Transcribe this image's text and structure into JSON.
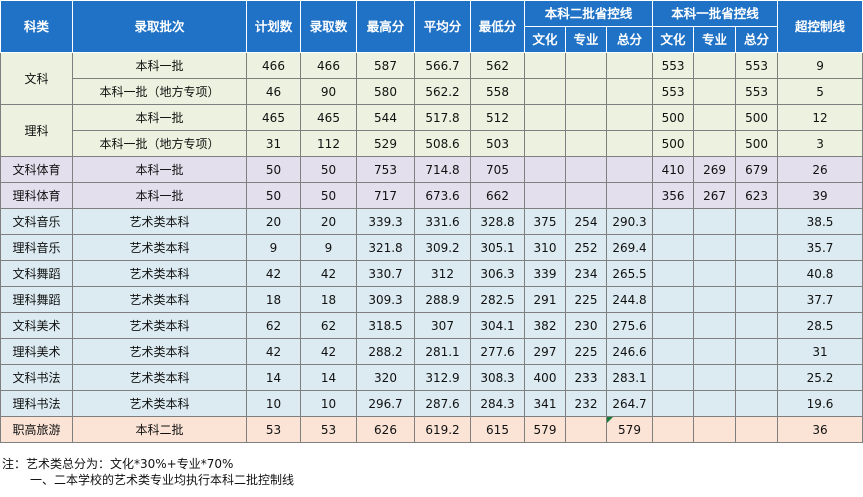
{
  "headers": {
    "kelei": "科类",
    "pici": "录取批次",
    "jihua": "计划数",
    "luqu": "录取数",
    "zuigao": "最高分",
    "pingjun": "平均分",
    "zuidi": "最低分",
    "erpi": "本科二批省控线",
    "yipi": "本科一批省控线",
    "chaokong": "超控制线",
    "wenhua": "文化",
    "zhuanye": "专业",
    "zongfen": "总分"
  },
  "groups": {
    "wenke": "文科",
    "like": "理科"
  },
  "rows": [
    {
      "kelei": "",
      "pici": "本科一批",
      "jihua": "466",
      "luqu": "466",
      "zuigao": "587",
      "pingjun": "566.7",
      "zuidi": "562",
      "e_wh": "",
      "e_zy": "",
      "e_zf": "",
      "y_wh": "553",
      "y_zy": "",
      "y_zf": "553",
      "chao": "9"
    },
    {
      "kelei": "",
      "pici": "本科一批（地方专项）",
      "jihua": "46",
      "luqu": "90",
      "zuigao": "580",
      "pingjun": "562.2",
      "zuidi": "558",
      "e_wh": "",
      "e_zy": "",
      "e_zf": "",
      "y_wh": "553",
      "y_zy": "",
      "y_zf": "553",
      "chao": "5"
    },
    {
      "kelei": "",
      "pici": "本科一批",
      "jihua": "465",
      "luqu": "465",
      "zuigao": "544",
      "pingjun": "517.8",
      "zuidi": "512",
      "e_wh": "",
      "e_zy": "",
      "e_zf": "",
      "y_wh": "500",
      "y_zy": "",
      "y_zf": "500",
      "chao": "12"
    },
    {
      "kelei": "",
      "pici": "本科一批（地方专项）",
      "jihua": "31",
      "luqu": "112",
      "zuigao": "529",
      "pingjun": "508.6",
      "zuidi": "503",
      "e_wh": "",
      "e_zy": "",
      "e_zf": "",
      "y_wh": "500",
      "y_zy": "",
      "y_zf": "500",
      "chao": "3"
    },
    {
      "kelei": "文科体育",
      "pici": "本科一批",
      "jihua": "50",
      "luqu": "50",
      "zuigao": "753",
      "pingjun": "714.8",
      "zuidi": "705",
      "e_wh": "",
      "e_zy": "",
      "e_zf": "",
      "y_wh": "410",
      "y_zy": "269",
      "y_zf": "679",
      "chao": "26"
    },
    {
      "kelei": "理科体育",
      "pici": "本科一批",
      "jihua": "50",
      "luqu": "50",
      "zuigao": "717",
      "pingjun": "673.6",
      "zuidi": "662",
      "e_wh": "",
      "e_zy": "",
      "e_zf": "",
      "y_wh": "356",
      "y_zy": "267",
      "y_zf": "623",
      "chao": "39"
    },
    {
      "kelei": "文科音乐",
      "pici": "艺术类本科",
      "jihua": "20",
      "luqu": "20",
      "zuigao": "339.3",
      "pingjun": "331.6",
      "zuidi": "328.8",
      "e_wh": "375",
      "e_zy": "254",
      "e_zf": "290.3",
      "y_wh": "",
      "y_zy": "",
      "y_zf": "",
      "chao": "38.5"
    },
    {
      "kelei": "理科音乐",
      "pici": "艺术类本科",
      "jihua": "9",
      "luqu": "9",
      "zuigao": "321.8",
      "pingjun": "309.2",
      "zuidi": "305.1",
      "e_wh": "310",
      "e_zy": "252",
      "e_zf": "269.4",
      "y_wh": "",
      "y_zy": "",
      "y_zf": "",
      "chao": "35.7"
    },
    {
      "kelei": "文科舞蹈",
      "pici": "艺术类本科",
      "jihua": "42",
      "luqu": "42",
      "zuigao": "330.7",
      "pingjun": "312",
      "zuidi": "306.3",
      "e_wh": "339",
      "e_zy": "234",
      "e_zf": "265.5",
      "y_wh": "",
      "y_zy": "",
      "y_zf": "",
      "chao": "40.8"
    },
    {
      "kelei": "理科舞蹈",
      "pici": "艺术类本科",
      "jihua": "18",
      "luqu": "18",
      "zuigao": "309.3",
      "pingjun": "288.9",
      "zuidi": "282.5",
      "e_wh": "291",
      "e_zy": "225",
      "e_zf": "244.8",
      "y_wh": "",
      "y_zy": "",
      "y_zf": "",
      "chao": "37.7"
    },
    {
      "kelei": "文科美术",
      "pici": "艺术类本科",
      "jihua": "62",
      "luqu": "62",
      "zuigao": "318.5",
      "pingjun": "307",
      "zuidi": "304.1",
      "e_wh": "382",
      "e_zy": "230",
      "e_zf": "275.6",
      "y_wh": "",
      "y_zy": "",
      "y_zf": "",
      "chao": "28.5"
    },
    {
      "kelei": "理科美术",
      "pici": "艺术类本科",
      "jihua": "42",
      "luqu": "42",
      "zuigao": "288.2",
      "pingjun": "281.1",
      "zuidi": "277.6",
      "e_wh": "297",
      "e_zy": "225",
      "e_zf": "246.6",
      "y_wh": "",
      "y_zy": "",
      "y_zf": "",
      "chao": "31"
    },
    {
      "kelei": "文科书法",
      "pici": "艺术类本科",
      "jihua": "14",
      "luqu": "14",
      "zuigao": "320",
      "pingjun": "312.9",
      "zuidi": "308.3",
      "e_wh": "400",
      "e_zy": "233",
      "e_zf": "283.1",
      "y_wh": "",
      "y_zy": "",
      "y_zf": "",
      "chao": "25.2"
    },
    {
      "kelei": "理科书法",
      "pici": "艺术类本科",
      "jihua": "10",
      "luqu": "10",
      "zuigao": "296.7",
      "pingjun": "287.6",
      "zuidi": "284.3",
      "e_wh": "341",
      "e_zy": "232",
      "e_zf": "264.7",
      "y_wh": "",
      "y_zy": "",
      "y_zf": "",
      "chao": "19.6"
    },
    {
      "kelei": "职高旅游",
      "pici": "本科二批",
      "jihua": "53",
      "luqu": "53",
      "zuigao": "626",
      "pingjun": "619.2",
      "zuidi": "615",
      "e_wh": "579",
      "e_zy": "",
      "e_zf": "579",
      "y_wh": "",
      "y_zy": "",
      "y_zf": "",
      "chao": "36"
    }
  ],
  "notes": {
    "line1": "注：艺术类总分为：文化*30%+专业*70%",
    "line2": "一、二本学校的艺术类专业均执行本科二批控制线"
  }
}
